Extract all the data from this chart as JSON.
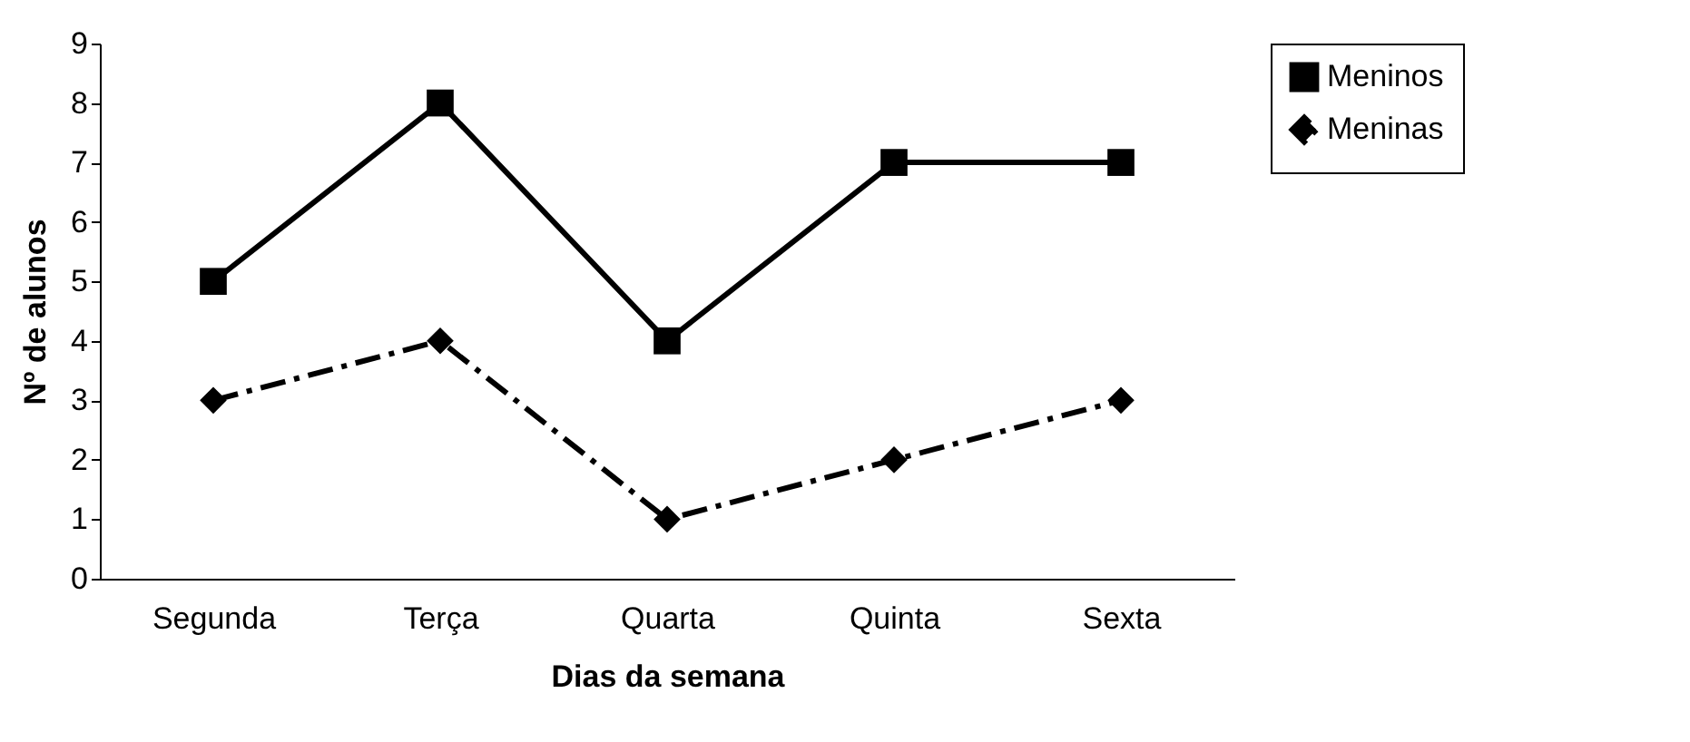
{
  "chart_data": {
    "type": "line",
    "xlabel": "Dias da semana",
    "ylabel": "Nº de alunos",
    "categories": [
      "Segunda",
      "Terça",
      "Quarta",
      "Quinta",
      "Sexta"
    ],
    "series": [
      {
        "name": "Meninos",
        "color": "#000000",
        "values": [
          5,
          8,
          4,
          7,
          7
        ],
        "marker": "square",
        "line_style": "solid"
      },
      {
        "name": "Meninas",
        "color": "#000000",
        "values": [
          3,
          4,
          1,
          2,
          3
        ],
        "marker": "diamond",
        "line_style": "dashed"
      }
    ],
    "ylim": [
      0,
      9
    ],
    "yticks": [
      0,
      1,
      2,
      3,
      4,
      5,
      6,
      7,
      8,
      9
    ],
    "grid": false,
    "legend": "right"
  }
}
